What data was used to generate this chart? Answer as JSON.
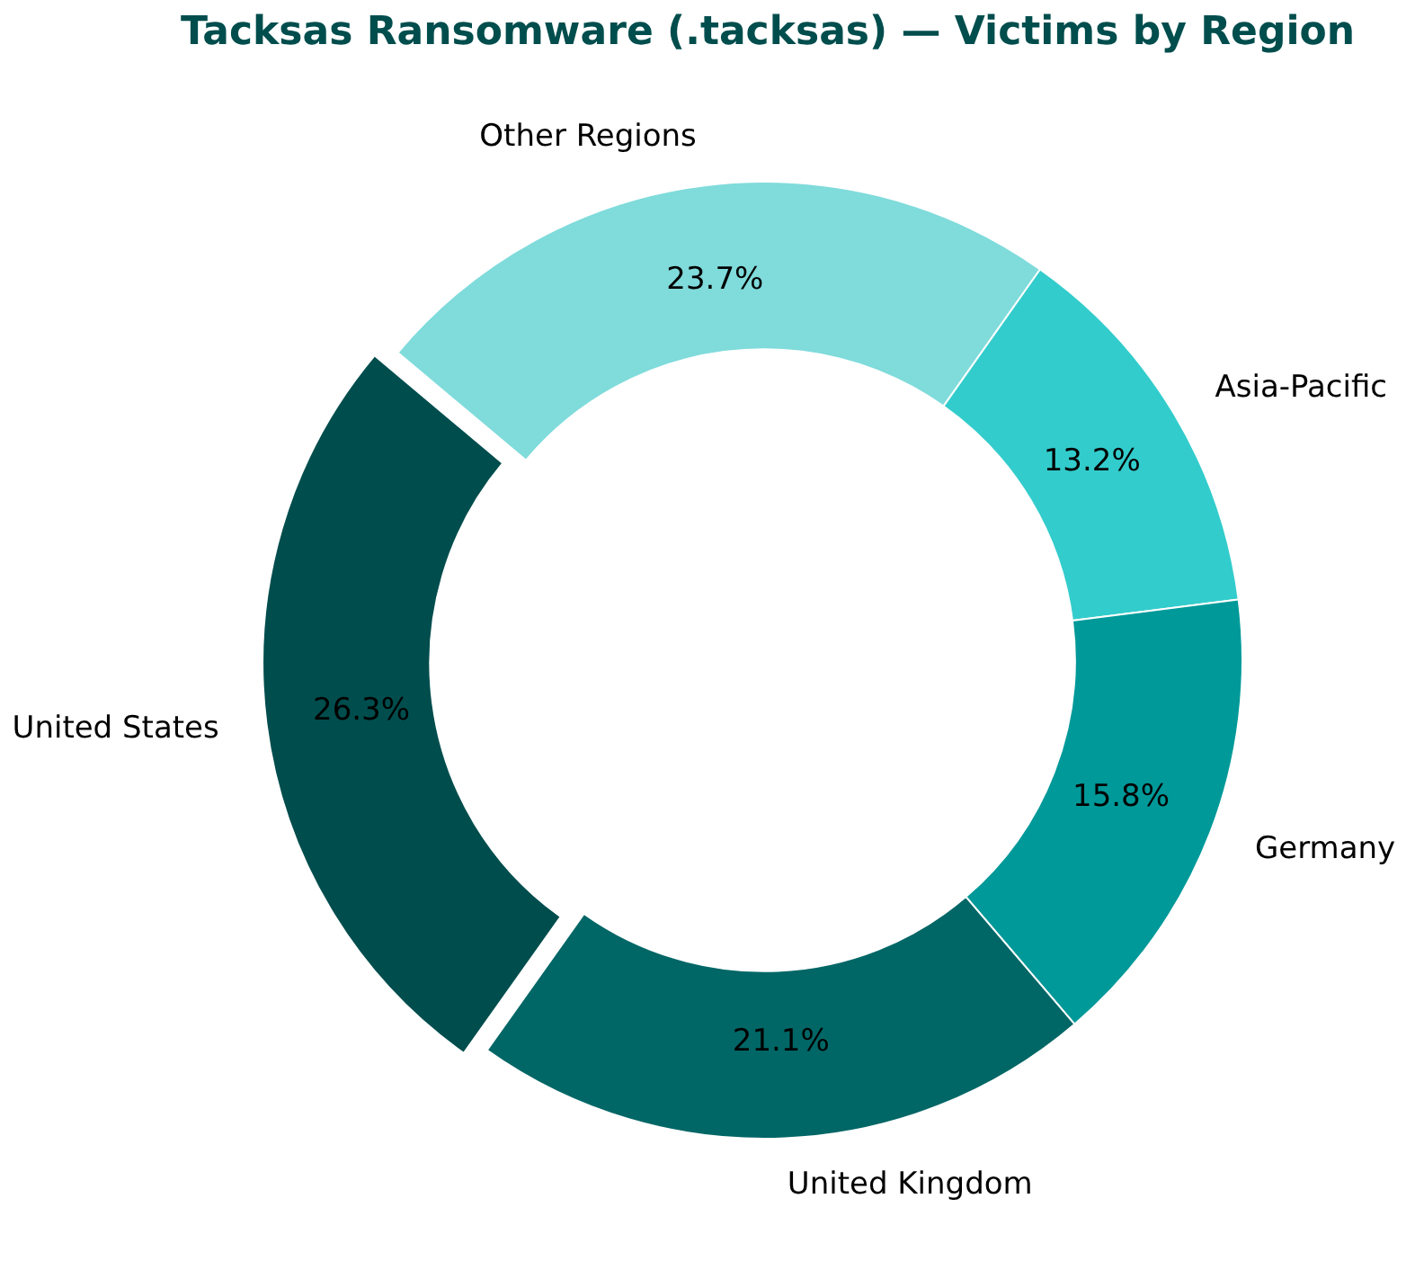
{
  "chart_data": {
    "type": "donut",
    "title": "Tacksas Ransomware (.tacksas) — Victims by Region",
    "categories": [
      "Other Regions",
      "Asia-Pacific",
      "Germany",
      "United Kingdom",
      "United States"
    ],
    "values": [
      23.7,
      13.2,
      15.8,
      21.1,
      26.3
    ],
    "colors": [
      "#80dbdb",
      "#33cccc",
      "#009999",
      "#006666",
      "#004d4d"
    ],
    "value_labels": [
      "23.7%",
      "13.2%",
      "15.8%",
      "21.1%",
      "26.3%"
    ],
    "legend": false
  }
}
